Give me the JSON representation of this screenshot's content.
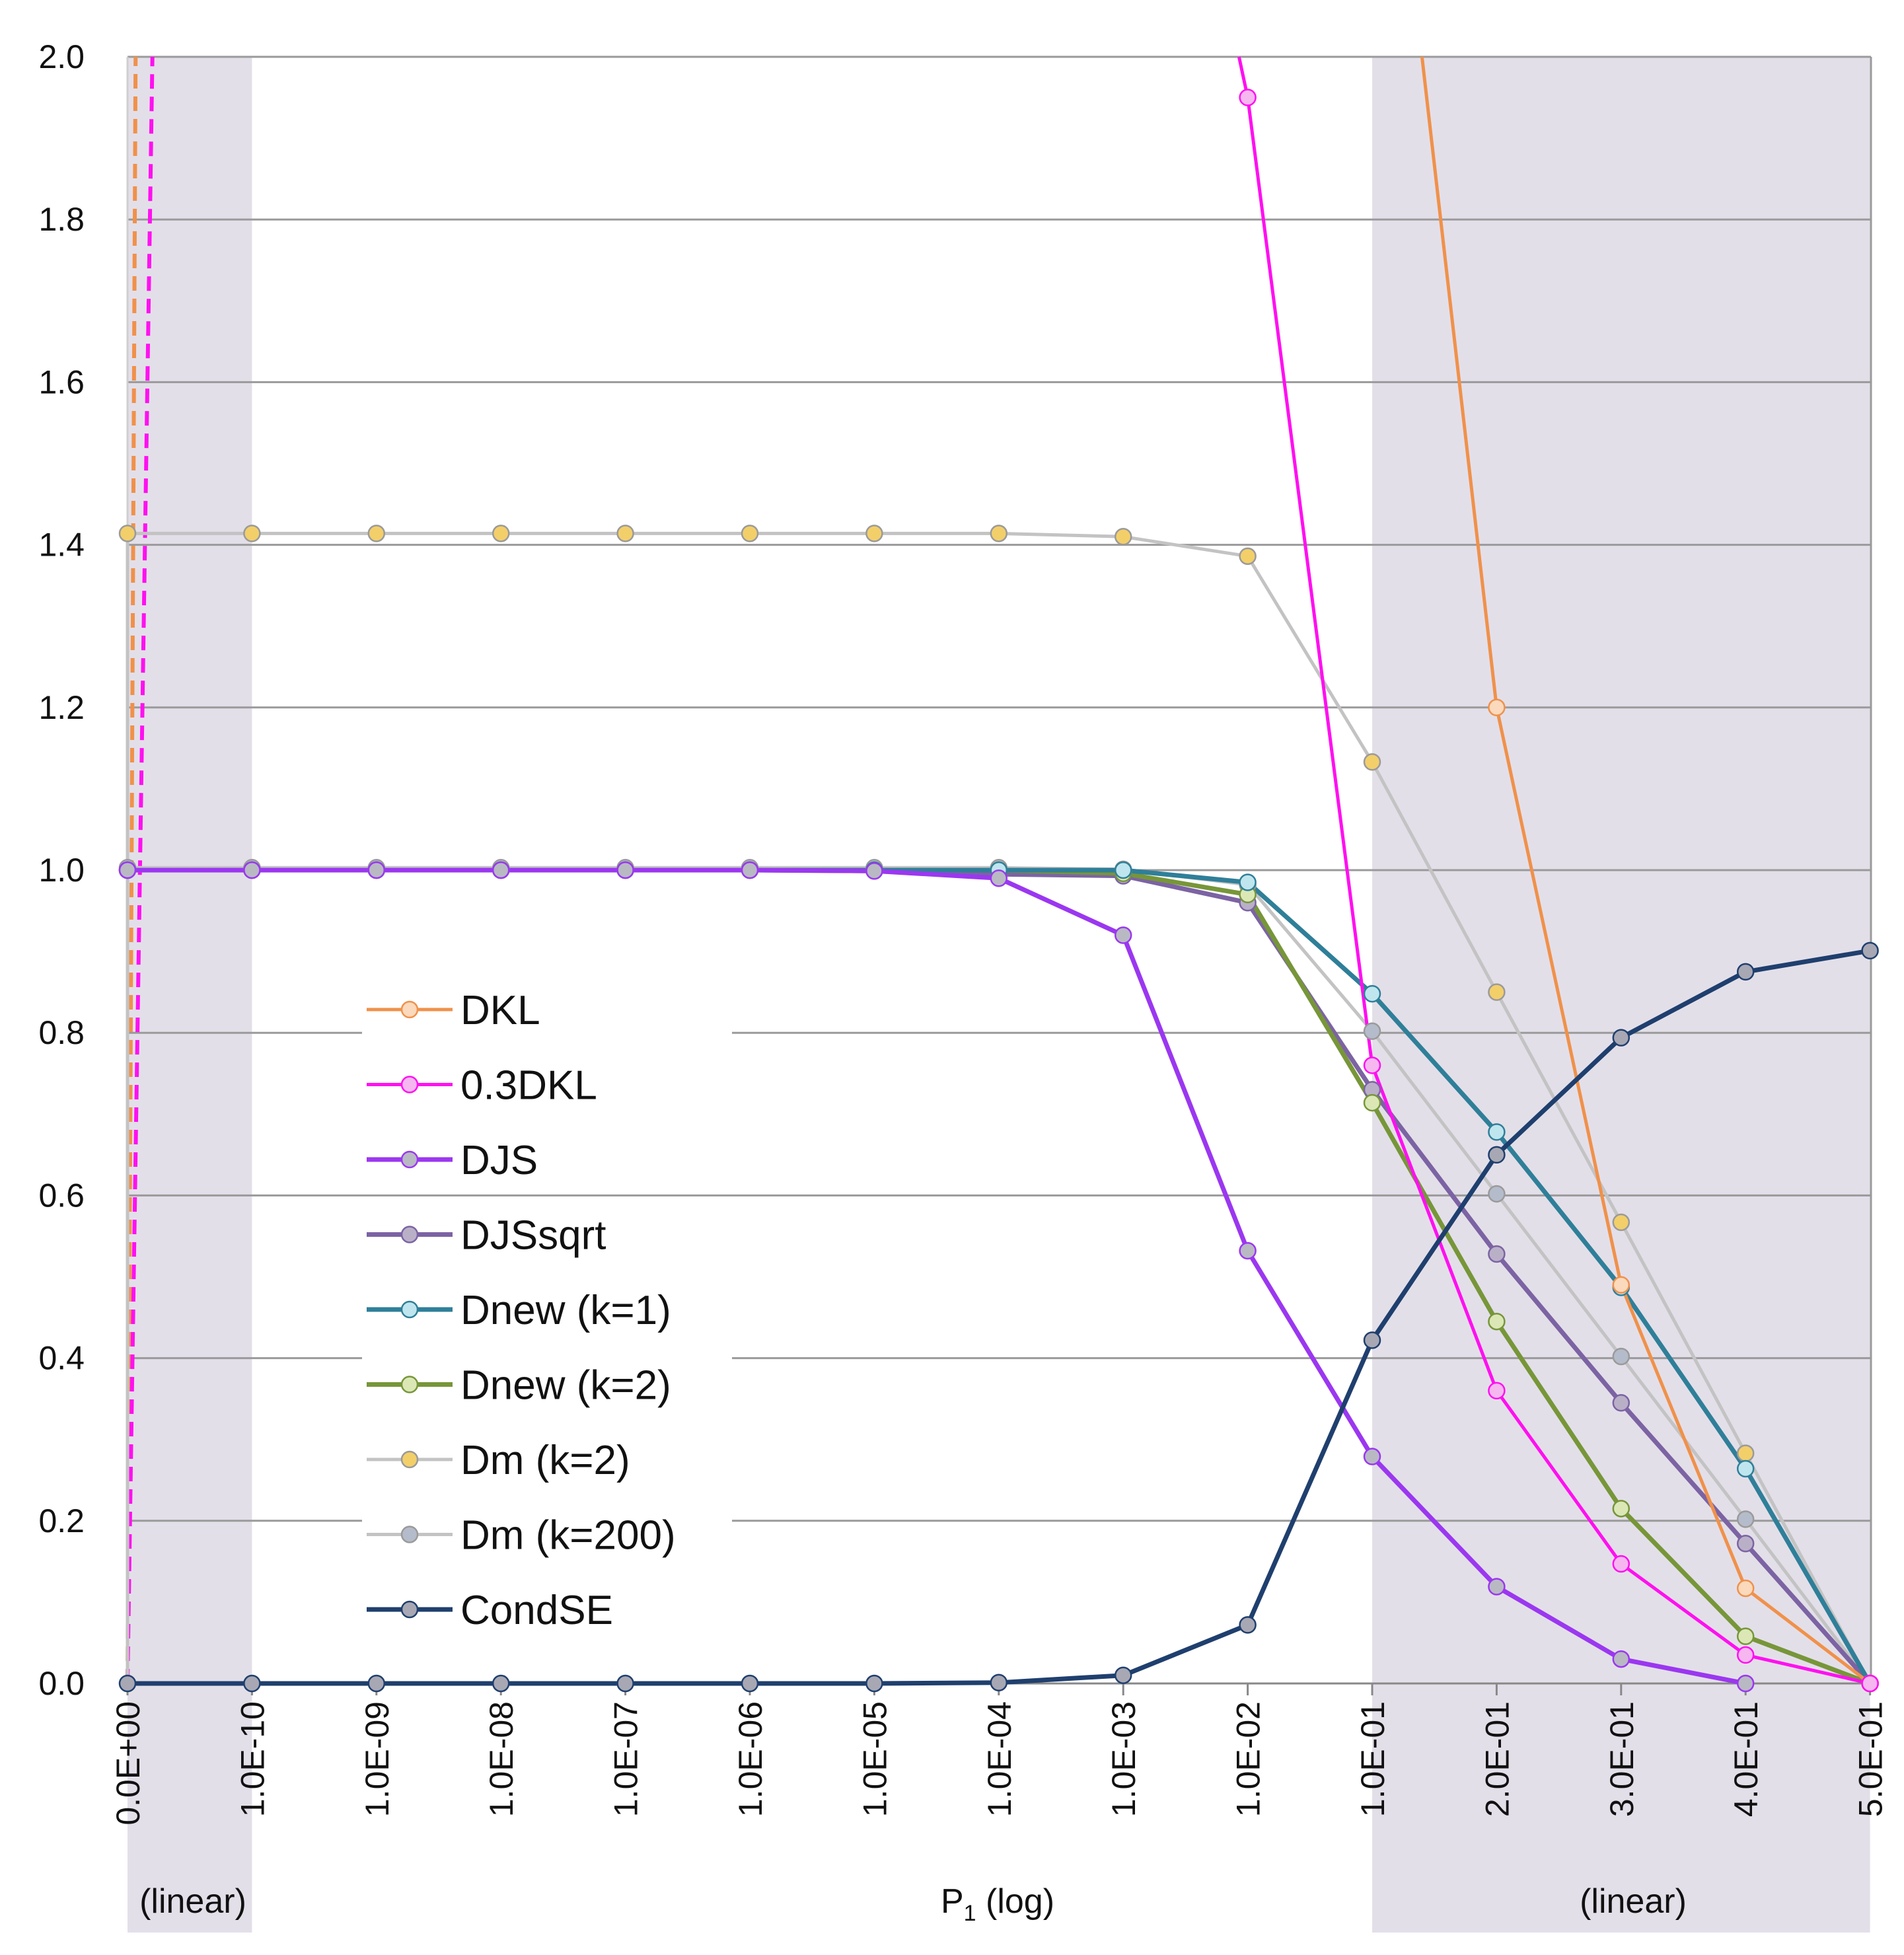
{
  "chart_data": {
    "type": "line",
    "title": "",
    "ylabel": "",
    "xlabel_parts": {
      "left": "(linear)",
      "middle": "P",
      "middle_sub": "1",
      "middle_tail": " (log)",
      "right": "(linear)"
    },
    "ylim": [
      0,
      2
    ],
    "yticks": [
      "0.0",
      "0.2",
      "0.4",
      "0.6",
      "0.8",
      "1.0",
      "1.2",
      "1.4",
      "1.6",
      "1.8",
      "2.0"
    ],
    "categories": [
      "0.0E+00",
      "1.0E-10",
      "1.0E-09",
      "1.0E-08",
      "1.0E-07",
      "1.0E-06",
      "1.0E-05",
      "1.0E-04",
      "1.0E-03",
      "1.0E-02",
      "1.0E-01",
      "2.0E-01",
      "3.0E-01",
      "4.0E-01",
      "5.0E-01"
    ],
    "shaded_regions": [
      {
        "from": "0.0E+00",
        "to": "1.0E-10",
        "label": "linear"
      },
      {
        "from": "1.0E-01",
        "to": "5.0E-01",
        "label": "linear"
      }
    ],
    "colors": {
      "band": "#e3dfe9",
      "grid": "#9a9a9a",
      "axis": "#888888"
    },
    "series": [
      {
        "name": "DKL",
        "color": "#f0914a",
        "marker_fill": "#fbd9bc",
        "width": 5,
        "values": [
          null,
          null,
          null,
          null,
          null,
          null,
          null,
          null,
          null,
          null,
          null,
          1.2,
          0.49,
          0.117,
          0.0
        ],
        "extra_points": [
          {
            "x": 10.4,
            "y": 2.0
          }
        ]
      },
      {
        "name": "0.3DKL",
        "color": "#ff10f0",
        "marker_fill": "#f6b7f0",
        "width": 5,
        "values": [
          null,
          null,
          null,
          null,
          null,
          null,
          null,
          null,
          null,
          1.95,
          0.76,
          0.36,
          0.147,
          0.035,
          0.0
        ],
        "extra_points": [
          {
            "x": 8.93,
            "y": 2.0
          }
        ]
      },
      {
        "name": "DJS",
        "color": "#9b37f0",
        "marker_fill": "#b9b9c3",
        "width": 7,
        "values": [
          1.0,
          1.0,
          1.0,
          1.0,
          1.0,
          1.0,
          0.999,
          0.99,
          0.92,
          0.532,
          0.279,
          0.119,
          0.03,
          0.0,
          null
        ]
      },
      {
        "name": "DJSsqrt",
        "color": "#7c63a3",
        "marker_fill": "#b9b0c8",
        "width": 7,
        "values": [
          1.0,
          1.0,
          1.0,
          1.0,
          1.0,
          1.0,
          0.999,
          0.995,
          0.993,
          0.96,
          0.73,
          0.528,
          0.345,
          0.172,
          0.0
        ]
      },
      {
        "name": "Dnew (k=1)",
        "color": "#2f7f99",
        "marker_fill": "#bfe6ee",
        "width": 7,
        "values": [
          1.0,
          1.0,
          1.0,
          1.0,
          1.0,
          1.0,
          1.0,
          1.0,
          1.0,
          0.985,
          0.848,
          0.678,
          0.487,
          0.264,
          0.0
        ]
      },
      {
        "name": "Dnew (k=2)",
        "color": "#779639",
        "marker_fill": "#dbe8b6",
        "width": 7,
        "values": [
          1.0,
          1.0,
          1.0,
          1.0,
          1.0,
          1.0,
          1.0,
          1.0,
          0.996,
          0.97,
          0.714,
          0.445,
          0.215,
          0.058,
          0.0
        ]
      },
      {
        "name": "Dm (k=2)",
        "color": "#c3c3c3",
        "marker_fill": "#f3cf6a",
        "width": 5,
        "values": [
          1.414,
          1.414,
          1.414,
          1.414,
          1.414,
          1.414,
          1.414,
          1.414,
          1.41,
          1.386,
          1.133,
          0.85,
          0.567,
          0.283,
          0.0
        ]
      },
      {
        "name": "Dm (k=200)",
        "color": "#c3c3c3",
        "marker_fill": "#b4bccb",
        "width": 5,
        "values": [
          1.003,
          1.003,
          1.003,
          1.003,
          1.003,
          1.003,
          1.003,
          1.003,
          1.001,
          0.982,
          0.802,
          0.602,
          0.402,
          0.202,
          0.0
        ]
      },
      {
        "name": "CondSE",
        "color": "#1f3f6e",
        "marker_fill": "#a8a8b4",
        "width": 7,
        "values": [
          0.0,
          0.0,
          0.0,
          0.0,
          0.0,
          0.0,
          0.0,
          0.001,
          0.01,
          0.072,
          0.422,
          0.65,
          0.794,
          0.875,
          0.901
        ]
      }
    ],
    "dashed_lines": [
      {
        "series": "DKL",
        "color": "#f0914a",
        "from": {
          "x": 0.0,
          "y": 0.0
        },
        "to": {
          "x": 0.065,
          "y": 2.0
        }
      },
      {
        "series": "0.3DKL",
        "color": "#ff10f0",
        "from": {
          "x": 0.0,
          "y": 0.0
        },
        "to": {
          "x": 0.2,
          "y": 2.0
        }
      }
    ],
    "left_edge_lines": [
      {
        "color": "#c3c3c3",
        "from": {
          "x": 0.0,
          "y": 0.0
        },
        "to": {
          "x": 0.0,
          "y": 1.414
        }
      }
    ],
    "legend": {
      "placement": "center-left",
      "entries": [
        "DKL",
        "0.3DKL",
        "DJS",
        "DJSsqrt",
        "Dnew (k=1)",
        "Dnew (k=2)",
        "Dm (k=2)",
        "Dm (k=200)",
        "CondSE"
      ]
    }
  }
}
